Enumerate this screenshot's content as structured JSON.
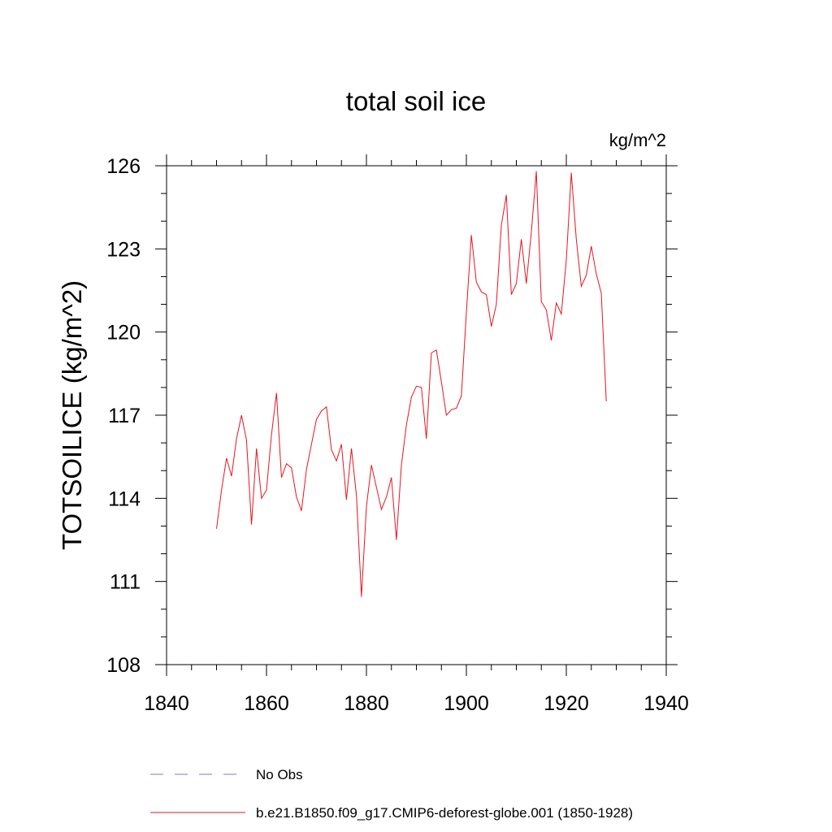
{
  "chart_data": {
    "type": "line",
    "title": "total soil ice",
    "units": "kg/m^2",
    "xlabel": "",
    "ylabel": "TOTSOILICE  (kg/m^2)",
    "xlim": [
      1840,
      1940
    ],
    "ylim": [
      108,
      126
    ],
    "x_ticks": [
      1840,
      1860,
      1880,
      1900,
      1920,
      1940
    ],
    "y_ticks": [
      108,
      111,
      114,
      117,
      120,
      123,
      126
    ],
    "x_tick_labels": [
      "1840",
      "1860",
      "1880",
      "1900",
      "1920",
      "1940"
    ],
    "y_tick_labels": [
      "108",
      "111",
      "114",
      "117",
      "120",
      "123",
      "126"
    ],
    "legend_position": "bottom",
    "series": [
      {
        "name": "No Obs",
        "legend_label": "No Obs",
        "color": "#7b78c8",
        "style": "dashed",
        "x": [],
        "values": []
      },
      {
        "name": "b.e21.B1850.f09_g17.CMIP6-deforest-globe.001",
        "legend_label": "b.e21.B1850.f09_g17.CMIP6-deforest-globe.001 (1850-1928)",
        "color": "#e8141e",
        "style": "solid",
        "x": [
          1850,
          1851,
          1852,
          1853,
          1854,
          1855,
          1856,
          1857,
          1858,
          1859,
          1860,
          1861,
          1862,
          1863,
          1864,
          1865,
          1866,
          1867,
          1868,
          1869,
          1870,
          1871,
          1872,
          1873,
          1874,
          1875,
          1876,
          1877,
          1878,
          1879,
          1880,
          1881,
          1882,
          1883,
          1884,
          1885,
          1886,
          1887,
          1888,
          1889,
          1890,
          1891,
          1892,
          1893,
          1894,
          1895,
          1896,
          1897,
          1898,
          1899,
          1900,
          1901,
          1902,
          1903,
          1904,
          1905,
          1906,
          1907,
          1908,
          1909,
          1910,
          1911,
          1912,
          1913,
          1914,
          1915,
          1916,
          1917,
          1918,
          1919,
          1920,
          1921,
          1922,
          1923,
          1924,
          1925,
          1926,
          1927,
          1928
        ],
        "values": [
          112.9,
          114.3,
          115.45,
          114.8,
          116.15,
          117.0,
          116.1,
          113.05,
          115.8,
          114.0,
          114.3,
          116.3,
          117.8,
          114.75,
          115.25,
          115.1,
          114.05,
          113.55,
          115.05,
          115.95,
          116.85,
          117.15,
          117.3,
          115.75,
          115.35,
          115.95,
          113.95,
          115.8,
          114.1,
          110.45,
          113.7,
          115.2,
          114.4,
          113.6,
          114.05,
          114.75,
          112.5,
          115.2,
          116.65,
          117.65,
          118.05,
          118.0,
          116.15,
          119.25,
          119.35,
          118.2,
          117.0,
          117.2,
          117.25,
          117.7,
          120.7,
          123.5,
          121.8,
          121.45,
          121.35,
          120.2,
          121.0,
          123.85,
          124.95,
          121.35,
          121.75,
          123.35,
          121.75,
          123.6,
          125.8,
          121.1,
          120.8,
          119.7,
          121.05,
          120.65,
          122.6,
          125.75,
          123.35,
          121.65,
          122.05,
          123.1,
          122.1,
          121.4,
          117.5
        ]
      }
    ]
  }
}
